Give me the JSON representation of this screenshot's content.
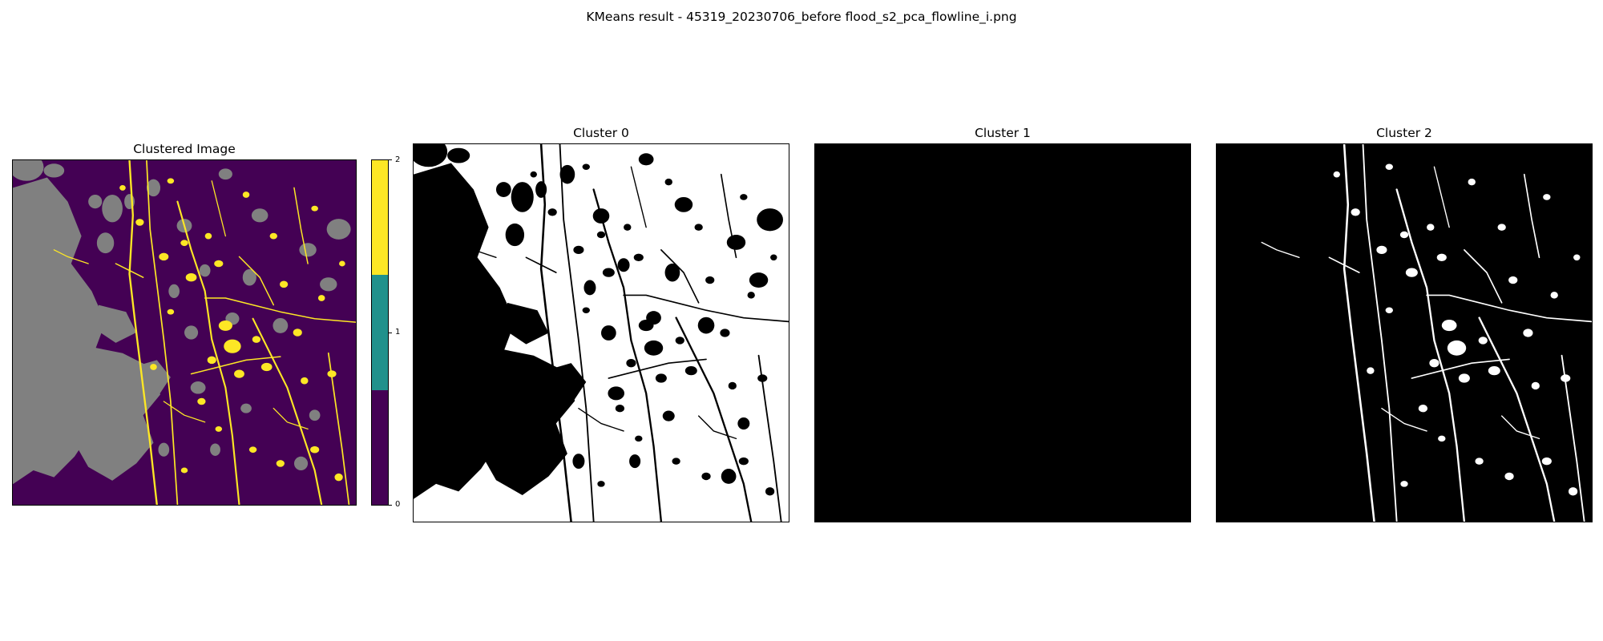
{
  "figure": {
    "title": "KMeans result - 45319_20230706_before flood_s2_pca_flowline_i.png"
  },
  "panels": {
    "clustered": {
      "title": "Clustered Image",
      "cluster_colors": [
        "#440154",
        "#808080",
        "#fde725"
      ]
    },
    "cluster0": {
      "title": "Cluster 0",
      "foreground": "#ffffff",
      "background": "#000000"
    },
    "cluster1": {
      "title": "Cluster 1",
      "foreground": "#ffffff",
      "background": "#000000"
    },
    "cluster2": {
      "title": "Cluster 2",
      "foreground": "#ffffff",
      "background": "#000000"
    }
  },
  "colorbar": {
    "ticks": [
      "0",
      "1",
      "2"
    ],
    "colors": [
      "#440154",
      "#21918c",
      "#fde725"
    ]
  }
}
